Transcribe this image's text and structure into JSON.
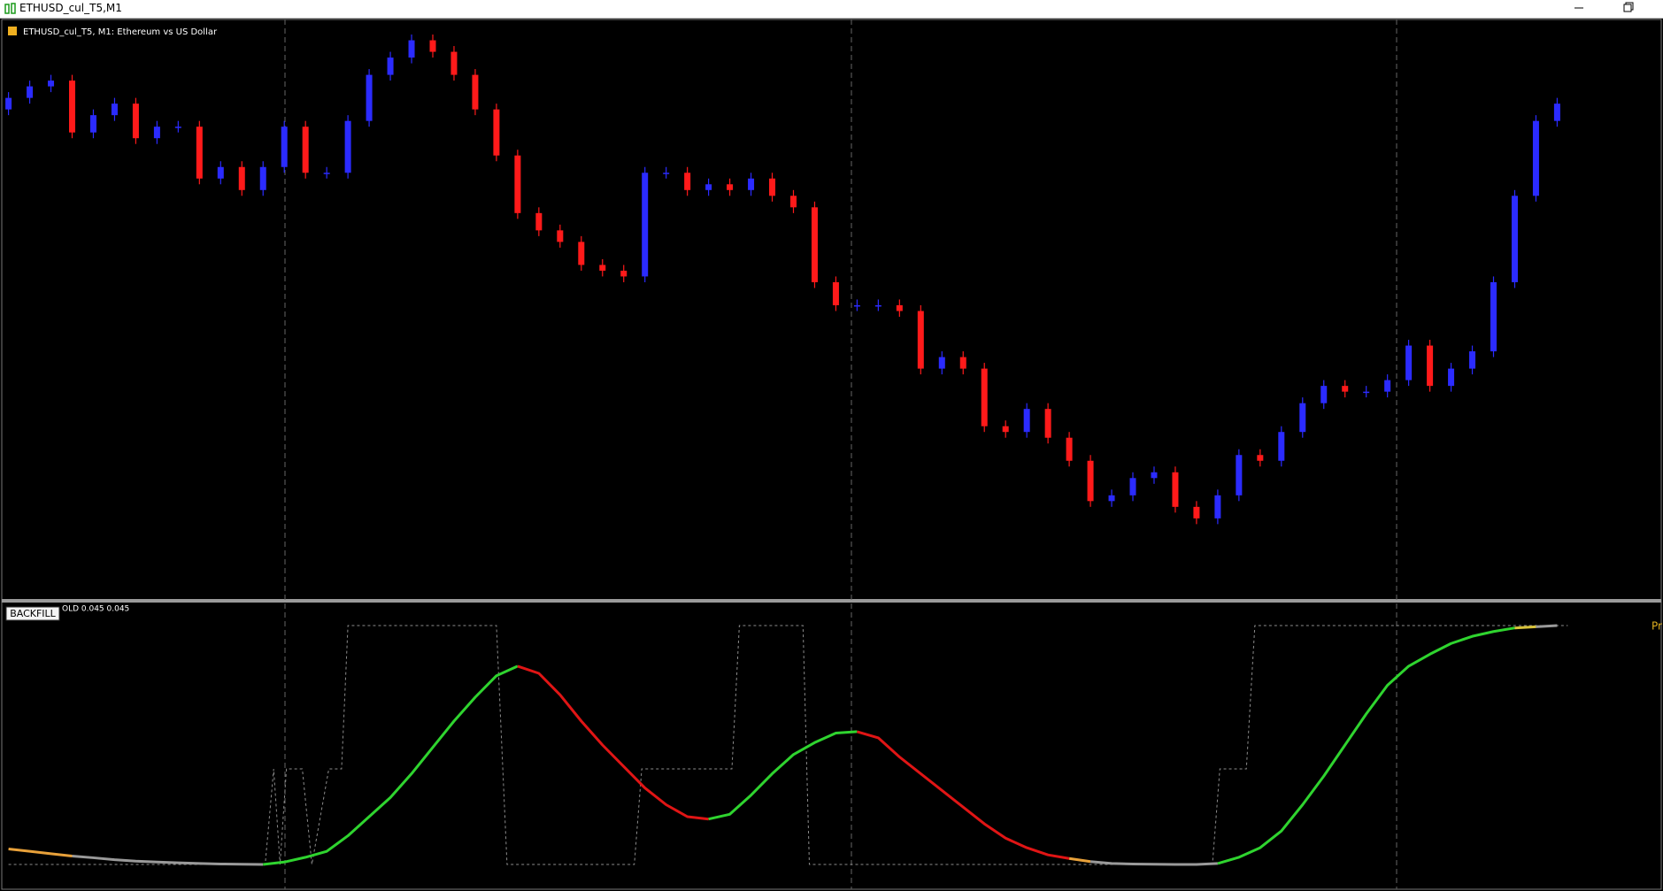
{
  "window_title": "ETHUSD_cul_T5,M1",
  "chart_data": [
    {
      "type": "candlestick",
      "label": "ETHUSD_cul_T5, M1:  Ethereum vs US Dollar",
      "up_color": "#2b2bff",
      "down_color": "#ff1a1a",
      "ylim": [
        0,
        100
      ],
      "open": [
        85,
        87,
        89,
        90,
        81,
        84,
        86,
        80,
        82,
        82,
        73,
        75,
        71,
        75,
        82,
        74,
        74,
        83,
        91,
        94,
        97,
        95,
        91,
        85,
        77,
        67,
        64,
        62,
        58,
        57,
        56,
        74,
        74,
        71,
        72,
        71,
        73,
        70,
        68,
        55,
        51,
        51,
        51,
        50,
        40,
        42,
        40,
        30,
        29,
        33,
        28,
        24,
        17,
        18,
        21,
        22,
        16,
        14,
        18,
        25,
        24,
        29,
        34,
        37,
        36,
        36,
        38,
        44,
        37,
        40,
        43,
        55,
        70,
        83
      ],
      "high": [
        88,
        90,
        91,
        91,
        85,
        87,
        87,
        83,
        83,
        83,
        76,
        76,
        76,
        83,
        83,
        75,
        84,
        92,
        95,
        98,
        98,
        96,
        92,
        86,
        78,
        68,
        65,
        63,
        59,
        58,
        75,
        75,
        75,
        73,
        73,
        74,
        74,
        71,
        69,
        56,
        52,
        52,
        52,
        51,
        43,
        43,
        41,
        31,
        34,
        34,
        29,
        25,
        19,
        22,
        23,
        23,
        17,
        19,
        26,
        26,
        30,
        35,
        38,
        38,
        37,
        39,
        45,
        45,
        41,
        44,
        56,
        71,
        84,
        87
      ],
      "low": [
        84,
        86,
        88,
        80,
        80,
        83,
        79,
        79,
        81,
        72,
        72,
        70,
        70,
        74,
        73,
        73,
        73,
        82,
        90,
        93,
        94,
        90,
        84,
        76,
        66,
        63,
        61,
        57,
        56,
        55,
        55,
        73,
        70,
        70,
        70,
        70,
        69,
        67,
        54,
        50,
        50,
        50,
        49,
        39,
        39,
        39,
        29,
        28,
        28,
        27,
        23,
        16,
        16,
        17,
        20,
        15,
        13,
        13,
        17,
        23,
        23,
        28,
        33,
        35,
        35,
        35,
        37,
        36,
        36,
        39,
        42,
        54,
        69,
        82
      ],
      "close": [
        87,
        89,
        90,
        81,
        84,
        86,
        80,
        82,
        82,
        73,
        75,
        71,
        75,
        82,
        74,
        74,
        83,
        91,
        94,
        97,
        95,
        91,
        85,
        77,
        67,
        64,
        62,
        58,
        57,
        56,
        74,
        74,
        71,
        72,
        71,
        73,
        70,
        68,
        55,
        51,
        51,
        51,
        50,
        40,
        42,
        40,
        30,
        29,
        33,
        28,
        24,
        17,
        18,
        21,
        22,
        16,
        14,
        18,
        25,
        24,
        29,
        34,
        37,
        36,
        36,
        38,
        44,
        37,
        40,
        43,
        55,
        70,
        83,
        86
      ]
    },
    {
      "type": "line",
      "button": "BACKFILL",
      "label": "OLD 0.045 0.045",
      "side_label": "Pr",
      "side_label_color": "#e0b020",
      "ylim": [
        0,
        1
      ],
      "step": {
        "color": "#8c8c8c",
        "x": [
          0,
          12.1,
          12.5,
          12.8,
          13.1,
          13.85,
          14.3,
          15.1,
          15.7,
          16,
          23,
          23.5,
          29.5,
          29.85,
          34.1,
          34.45,
          37.45,
          37.75,
          56.75,
          57.1,
          58.35,
          58.75,
          73.5
        ],
        "values": [
          0,
          0,
          0.4,
          0,
          0.4,
          0.4,
          0,
          0.4,
          0.4,
          1,
          1,
          0,
          0,
          0.4,
          0.4,
          1,
          1,
          0,
          0,
          0.4,
          0.4,
          1,
          1
        ]
      },
      "series": [
        {
          "color": "#e8a13a",
          "x": [
            0,
            1,
            2,
            3
          ],
          "values": [
            0.065,
            0.055,
            0.045,
            0.035
          ]
        },
        {
          "color": "#9a9a9a",
          "x": [
            3,
            4,
            5,
            6,
            7,
            8,
            9,
            10,
            11,
            12
          ],
          "values": [
            0.035,
            0.028,
            0.02,
            0.014,
            0.01,
            0.007,
            0.004,
            0.002,
            0.001,
            0
          ]
        },
        {
          "color": "#2fd42f",
          "x": [
            12,
            13,
            14,
            15,
            16,
            17,
            18,
            19,
            20,
            21,
            22,
            23,
            24
          ],
          "values": [
            0,
            0.01,
            0.03,
            0.055,
            0.12,
            0.2,
            0.28,
            0.38,
            0.49,
            0.6,
            0.7,
            0.79,
            0.83
          ]
        },
        {
          "color": "#e01515",
          "x": [
            24,
            25,
            26,
            27,
            28,
            29,
            30,
            31,
            32,
            33
          ],
          "values": [
            0.83,
            0.8,
            0.71,
            0.6,
            0.5,
            0.41,
            0.32,
            0.25,
            0.2,
            0.19
          ]
        },
        {
          "color": "#2fd42f",
          "x": [
            33,
            34,
            35,
            36,
            37,
            38,
            39,
            40
          ],
          "values": [
            0.19,
            0.21,
            0.29,
            0.38,
            0.46,
            0.51,
            0.55,
            0.556
          ]
        },
        {
          "color": "#e01515",
          "x": [
            40,
            41,
            42,
            43,
            44,
            45,
            46,
            47,
            48,
            49,
            50
          ],
          "values": [
            0.556,
            0.53,
            0.45,
            0.38,
            0.31,
            0.24,
            0.17,
            0.11,
            0.07,
            0.04,
            0.025
          ]
        },
        {
          "color": "#e8a13a",
          "x": [
            50,
            51
          ],
          "values": [
            0.025,
            0.012
          ]
        },
        {
          "color": "#9a9a9a",
          "x": [
            51,
            52,
            53,
            54,
            55,
            56,
            57
          ],
          "values": [
            0.012,
            0.004,
            0.002,
            0.001,
            0,
            0,
            0.004
          ]
        },
        {
          "color": "#2fd42f",
          "x": [
            57,
            58,
            59,
            60,
            61,
            62,
            63,
            64,
            65,
            66,
            67,
            68,
            69,
            70,
            71
          ],
          "values": [
            0.004,
            0.03,
            0.07,
            0.14,
            0.25,
            0.37,
            0.5,
            0.63,
            0.75,
            0.83,
            0.88,
            0.925,
            0.955,
            0.975,
            0.99
          ]
        },
        {
          "color": "#d8c33a",
          "x": [
            71,
            72
          ],
          "values": [
            0.99,
            0.995
          ]
        },
        {
          "color": "#9a9a9a",
          "x": [
            72,
            73
          ],
          "values": [
            0.995,
            1
          ]
        }
      ]
    }
  ]
}
